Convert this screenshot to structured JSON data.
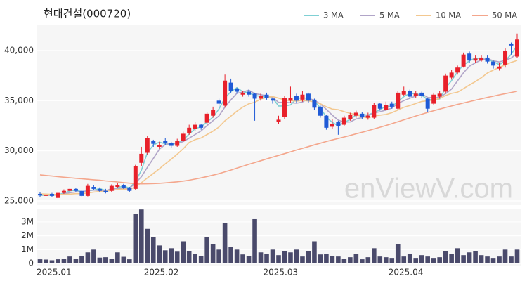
{
  "chart_data": [
    {
      "type": "candlestick",
      "title": "현대건설(000720)",
      "watermark": "enViewV.com",
      "up_color": "#e8202a",
      "down_color": "#1f5ad6",
      "grid": true,
      "background": "#f6f6f6",
      "ylim": [
        24580,
        42590
      ],
      "yticks": [
        {
          "value": 25000,
          "label": "25,000"
        },
        {
          "value": 30000,
          "label": "30,000"
        },
        {
          "value": 35000,
          "label": "35,000"
        },
        {
          "value": 40000,
          "label": "40,000"
        }
      ],
      "open": [
        25700,
        25500,
        25700,
        25300,
        25800,
        26000,
        26200,
        26000,
        25500,
        26400,
        26200,
        26000,
        26000,
        26400,
        26600,
        26300,
        26200,
        28800,
        29800,
        31000,
        30400,
        31000,
        30800,
        30500,
        31000,
        31800,
        32200,
        32600,
        32800,
        33500,
        35000,
        34500,
        36800,
        36200,
        35600,
        35900,
        35700,
        35200,
        35600,
        35200,
        32900,
        33400,
        35000,
        35500,
        35100,
        35700,
        35100,
        34400,
        33500,
        32400,
        32900,
        32600,
        33200,
        33500,
        33700,
        33300,
        33300,
        34700,
        34100,
        34700,
        34200,
        35600,
        36000,
        35500,
        35800,
        35200,
        34700,
        35400,
        35900,
        37300,
        37800,
        38400,
        39700,
        39000,
        39000,
        39300,
        38900,
        38200,
        38600,
        40700,
        39400
      ],
      "high": [
        25850,
        25750,
        25800,
        25950,
        26150,
        26300,
        26300,
        26100,
        26700,
        26550,
        26350,
        26200,
        26650,
        26800,
        26700,
        26400,
        28600,
        30400,
        31500,
        31100,
        30900,
        31300,
        30900,
        31200,
        31900,
        32600,
        32900,
        32700,
        33900,
        34400,
        35200,
        37600,
        37200,
        36300,
        36000,
        36100,
        35800,
        35700,
        35800,
        35300,
        33500,
        35500,
        36400,
        35700,
        36000,
        35800,
        35200,
        34500,
        33600,
        33200,
        33000,
        33500,
        33800,
        34000,
        33900,
        33800,
        34800,
        34800,
        34900,
        34900,
        36000,
        36400,
        36100,
        36000,
        35900,
        35300,
        35800,
        36000,
        37700,
        38100,
        38500,
        39800,
        39900,
        39500,
        39500,
        39500,
        39000,
        38800,
        40200,
        40800,
        41700
      ],
      "low": [
        25400,
        25350,
        25350,
        25250,
        25700,
        25900,
        25850,
        25400,
        25450,
        26100,
        25900,
        25750,
        25900,
        26300,
        26200,
        25900,
        26100,
        28500,
        29600,
        30400,
        30200,
        30600,
        30300,
        30400,
        30900,
        31600,
        32000,
        32100,
        32600,
        33300,
        34400,
        34300,
        35800,
        35700,
        35400,
        35400,
        33000,
        35000,
        35100,
        34700,
        32700,
        33200,
        34800,
        34800,
        34900,
        34800,
        34100,
        33300,
        32100,
        32200,
        31600,
        32500,
        33000,
        33300,
        33200,
        33100,
        33200,
        34000,
        34000,
        34200,
        34100,
        35500,
        35200,
        35300,
        35300,
        33900,
        34600,
        35200,
        35700,
        37100,
        37600,
        38300,
        38800,
        38800,
        38900,
        38700,
        38200,
        38000,
        38300,
        39600,
        39300
      ],
      "close": [
        25550,
        25600,
        25500,
        25800,
        26000,
        26200,
        26000,
        25500,
        26500,
        26200,
        26000,
        25900,
        26500,
        26600,
        26300,
        26000,
        28500,
        29700,
        31300,
        30700,
        30600,
        30800,
        30500,
        31000,
        31700,
        32300,
        32600,
        32300,
        33700,
        34100,
        34700,
        37000,
        36000,
        35900,
        35800,
        35600,
        35200,
        35500,
        35300,
        35000,
        33100,
        35300,
        35300,
        35000,
        35600,
        35000,
        34300,
        33500,
        32300,
        32700,
        32500,
        33300,
        33600,
        33800,
        33400,
        33500,
        34600,
        34200,
        34600,
        34400,
        35800,
        36000,
        35400,
        35700,
        35500,
        34200,
        35600,
        35700,
        37500,
        37800,
        38300,
        39600,
        39000,
        39200,
        39300,
        38900,
        38500,
        38400,
        40000,
        40500,
        41100
      ],
      "series": [
        {
          "name": "3 MA",
          "color": "#7fd0d4",
          "values": [
            25550,
            25580,
            25550,
            25630,
            25770,
            26000,
            26070,
            25900,
            26000,
            26070,
            26230,
            26030,
            26130,
            26330,
            26470,
            26300,
            26930,
            28070,
            29830,
            30570,
            30870,
            30700,
            30630,
            30770,
            31070,
            31670,
            32200,
            32400,
            32870,
            33370,
            34170,
            35270,
            35900,
            36300,
            35900,
            35770,
            35530,
            35430,
            35330,
            35270,
            34470,
            34470,
            34570,
            35200,
            35300,
            35200,
            34970,
            34270,
            33370,
            32830,
            32500,
            32830,
            33130,
            33570,
            33600,
            33570,
            33830,
            34100,
            34470,
            34400,
            34930,
            35400,
            35730,
            35700,
            35530,
            35130,
            35100,
            35170,
            36270,
            37000,
            37870,
            38570,
            38970,
            39270,
            39170,
            39130,
            38900,
            38600,
            38970,
            39630,
            40530
          ]
        },
        {
          "name": "5 MA",
          "color": "#b1a5c8",
          "values": [
            25600,
            25600,
            25580,
            25600,
            25690,
            25820,
            25900,
            25900,
            26040,
            26080,
            26040,
            26020,
            26220,
            26240,
            26260,
            26260,
            26780,
            27420,
            28360,
            29240,
            30160,
            30620,
            30780,
            30720,
            30920,
            31260,
            31620,
            31980,
            32520,
            33000,
            33480,
            34360,
            35080,
            35740,
            35860,
            36060,
            35700,
            35600,
            35480,
            35320,
            34820,
            34840,
            34800,
            34740,
            34860,
            35240,
            35040,
            34680,
            34140,
            33560,
            33060,
            32860,
            32880,
            33180,
            33320,
            33520,
            33780,
            33900,
            34060,
            34260,
            34720,
            35000,
            35240,
            35460,
            35680,
            35320,
            35280,
            35340,
            35700,
            36160,
            36980,
            37780,
            38440,
            38780,
            39080,
            39200,
            38980,
            38860,
            39020,
            39260,
            39700
          ]
        },
        {
          "name": "10 MA",
          "color": "#f3c890",
          "values": [
            25700,
            25680,
            25650,
            25640,
            25650,
            25680,
            25720,
            25720,
            25790,
            25880,
            25930,
            25960,
            26060,
            26140,
            26170,
            26150,
            26400,
            26820,
            27300,
            27750,
            28210,
            28700,
            29160,
            29660,
            30200,
            30830,
            31120,
            31280,
            31620,
            31960,
            32370,
            32990,
            33460,
            33950,
            34360,
            34690,
            34840,
            35160,
            35320,
            35410,
            35250,
            35070,
            35010,
            34950,
            35030,
            34970,
            34880,
            34690,
            34390,
            34160,
            34100,
            33900,
            33730,
            33610,
            33410,
            33260,
            33490,
            33560,
            33630,
            33800,
            34070,
            34340,
            34520,
            34710,
            34920,
            34990,
            35070,
            35220,
            35510,
            35730,
            35840,
            36200,
            36560,
            36910,
            37290,
            37760,
            38050,
            38320,
            38560,
            38830,
            39010
          ]
        },
        {
          "name": "50 MA",
          "color": "#f4a68c",
          "values": [
            27600,
            27540,
            27480,
            27420,
            27360,
            27310,
            27260,
            27210,
            27160,
            27110,
            27060,
            27000,
            26950,
            26890,
            26830,
            26770,
            26720,
            26700,
            26710,
            26730,
            26760,
            26800,
            26850,
            26910,
            26980,
            27070,
            27180,
            27300,
            27430,
            27570,
            27720,
            27900,
            28080,
            28270,
            28460,
            28650,
            28830,
            29010,
            29190,
            29370,
            29540,
            29720,
            29900,
            30080,
            30250,
            30420,
            30590,
            30760,
            30930,
            31080,
            31230,
            31380,
            31530,
            31690,
            31850,
            32010,
            32180,
            32350,
            32530,
            32710,
            32900,
            33090,
            33280,
            33470,
            33650,
            33830,
            34000,
            34160,
            34320,
            34470,
            34620,
            34770,
            34910,
            35050,
            35190,
            35320,
            35450,
            35580,
            35700,
            35820,
            35940
          ]
        }
      ]
    },
    {
      "type": "bar",
      "color": "#4a4a6b",
      "grid": true,
      "background": "#f6f6f6",
      "categories": [
        "2025.01",
        null,
        null,
        null,
        null,
        null,
        null,
        null,
        null,
        null,
        null,
        null,
        null,
        null,
        null,
        null,
        null,
        null,
        "2025.02",
        null,
        null,
        null,
        null,
        null,
        null,
        null,
        null,
        null,
        null,
        null,
        null,
        null,
        null,
        null,
        null,
        null,
        null,
        null,
        "2025.03",
        null,
        null,
        null,
        null,
        null,
        null,
        null,
        null,
        null,
        null,
        null,
        null,
        null,
        null,
        null,
        null,
        null,
        null,
        null,
        null,
        "2025.04",
        null,
        null,
        null,
        null,
        null,
        null,
        null,
        null,
        null,
        null,
        null,
        null,
        null,
        null,
        null,
        null,
        null,
        null,
        null,
        null,
        null
      ],
      "values": [
        300000,
        280000,
        230000,
        300000,
        310000,
        500000,
        320000,
        520000,
        800000,
        1000000,
        420000,
        450000,
        350000,
        800000,
        480000,
        300000,
        3600000,
        3900000,
        2500000,
        1900000,
        1300000,
        950000,
        1100000,
        850000,
        1600000,
        900000,
        700000,
        550000,
        1900000,
        1400000,
        1000000,
        2900000,
        1200000,
        1000000,
        650000,
        550000,
        3200000,
        800000,
        700000,
        1000000,
        600000,
        900000,
        800000,
        1000000,
        500000,
        900000,
        1600000,
        650000,
        700000,
        550000,
        500000,
        350000,
        450000,
        700000,
        300000,
        450000,
        1100000,
        500000,
        450000,
        400000,
        1400000,
        500000,
        700000,
        400000,
        600000,
        500000,
        400000,
        450000,
        900000,
        700000,
        1100000,
        600000,
        800000,
        900000,
        600000,
        500000,
        400000,
        500000,
        1000000,
        500000,
        1000000
      ],
      "ylim": [
        0,
        3910000
      ],
      "yticks": [
        0,
        {
          "value": 1000000,
          "label": "1M"
        },
        {
          "value": 2000000,
          "label": "2M"
        },
        {
          "value": 3000000,
          "label": "3M"
        }
      ]
    }
  ]
}
